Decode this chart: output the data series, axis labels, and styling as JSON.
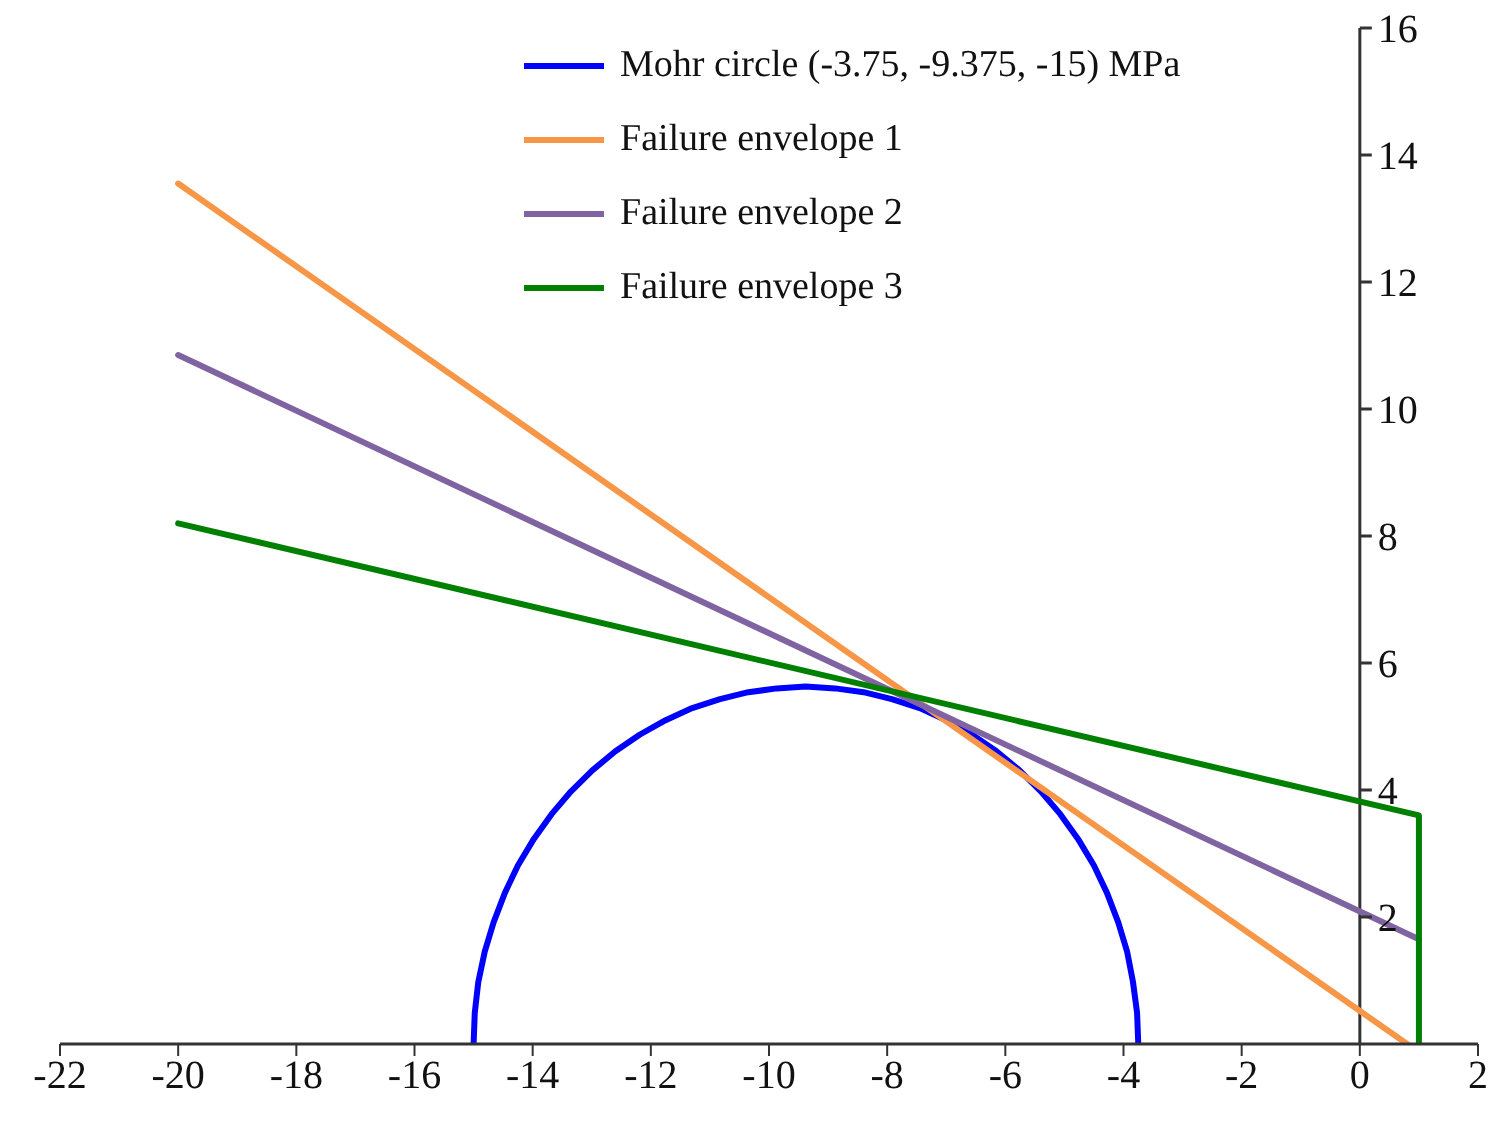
{
  "chart_data": {
    "type": "line",
    "legend": "top",
    "marker": "none",
    "line_style": "solid",
    "xlim": [
      -22,
      2
    ],
    "xticks": [
      -22,
      -20,
      -18,
      -16,
      -14,
      -12,
      -10,
      -8,
      -6,
      -4,
      -2,
      0,
      2
    ],
    "ylim": [
      0,
      16
    ],
    "yticks": [
      2,
      4,
      6,
      8,
      10,
      12,
      14,
      16
    ],
    "series": [
      {
        "name": "Mohr circle (-3.75, -9.375, -15) MPa",
        "color": "#0000ff",
        "x": [
          -15,
          -14.98,
          -14.92,
          -14.81,
          -14.66,
          -14.47,
          -14.25,
          -13.98,
          -13.68,
          -13.35,
          -12.99,
          -12.6,
          -12.19,
          -11.75,
          -11.3,
          -10.83,
          -10.35,
          -9.87,
          -9.38,
          -8.88,
          -8.4,
          -7.92,
          -7.45,
          -7,
          -6.56,
          -6.15,
          -5.76,
          -5.4,
          -5.07,
          -4.77,
          -4.5,
          -4.28,
          -4.09,
          -3.94,
          -3.84,
          -3.77,
          -3.75
        ],
        "values": [
          0,
          0.49,
          0.98,
          1.46,
          1.92,
          2.38,
          2.81,
          3.23,
          3.62,
          3.98,
          4.31,
          4.61,
          4.87,
          5.1,
          5.29,
          5.43,
          5.54,
          5.6,
          5.63,
          5.6,
          5.54,
          5.43,
          5.29,
          5.1,
          4.87,
          4.61,
          4.31,
          3.98,
          3.62,
          3.23,
          2.81,
          2.38,
          1.92,
          1.46,
          0.98,
          0.49,
          0
        ]
      },
      {
        "name": "Failure envelope 1",
        "color": "#f79646",
        "x": [
          -20,
          0.8
        ],
        "values": [
          13.55,
          0
        ]
      },
      {
        "name": "Failure envelope 2",
        "color": "#8064a2",
        "x": [
          -20,
          1
        ],
        "values": [
          10.85,
          1.65
        ]
      },
      {
        "name": "Failure envelope 3",
        "color": "#008000",
        "x": [
          -20,
          1,
          1
        ],
        "values": [
          8.2,
          3.6,
          0
        ]
      }
    ]
  }
}
